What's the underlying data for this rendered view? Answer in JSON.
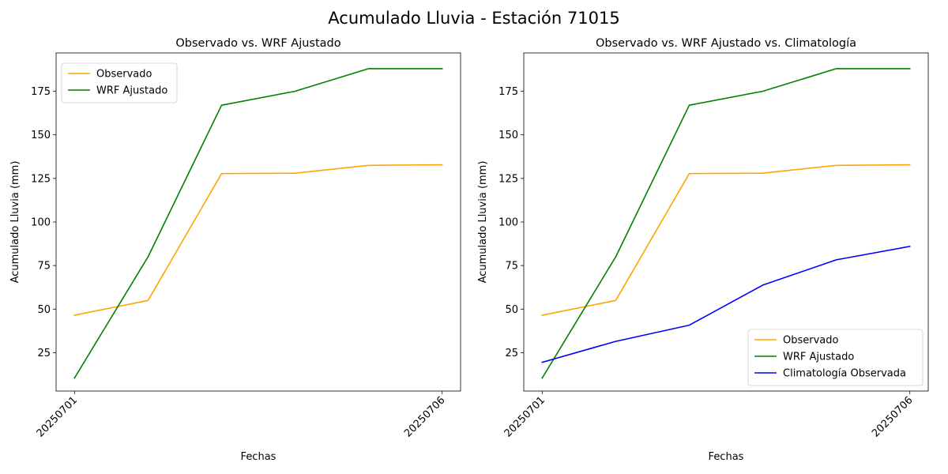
{
  "figure": {
    "suptitle": "Acumulado Lluvia - Estación 71015"
  },
  "colors": {
    "observado": "#ffa500",
    "wrf": "#008000",
    "climatologia": "#0000ff"
  },
  "chart_data": [
    {
      "type": "line",
      "title": "Observado vs. WRF Ajustado",
      "xlabel": "Fechas",
      "ylabel": "Acumulado Lluvia (mm)",
      "x": [
        0,
        1,
        2,
        3,
        4,
        5
      ],
      "xtick_values": [
        0,
        5
      ],
      "xtick_labels": [
        "20250701",
        "20250706"
      ],
      "xlim": [
        -0.25,
        5.25
      ],
      "ylim": [
        3,
        197
      ],
      "yticks": [
        25,
        50,
        75,
        100,
        125,
        150,
        175
      ],
      "legend_position": "upper left",
      "series": [
        {
          "name": "Observado",
          "color": "#ffa500",
          "values": [
            46.5,
            55.0,
            127.8,
            128.0,
            132.5,
            132.8
          ]
        },
        {
          "name": "WRF Ajustado",
          "color": "#008000",
          "values": [
            10.5,
            80.0,
            167.0,
            175.0,
            188.0,
            188.0
          ]
        }
      ]
    },
    {
      "type": "line",
      "title": "Observado vs. WRF Ajustado vs. Climatología",
      "xlabel": "Fechas",
      "ylabel": "Acumulado Lluvia (mm)",
      "x": [
        0,
        1,
        2,
        3,
        4,
        5
      ],
      "xtick_values": [
        0,
        5
      ],
      "xtick_labels": [
        "20250701",
        "20250706"
      ],
      "xlim": [
        -0.25,
        5.25
      ],
      "ylim": [
        3,
        197
      ],
      "yticks": [
        25,
        50,
        75,
        100,
        125,
        150,
        175
      ],
      "legend_position": "lower right",
      "series": [
        {
          "name": "Observado",
          "color": "#ffa500",
          "values": [
            46.5,
            55.0,
            127.8,
            128.0,
            132.5,
            132.8
          ]
        },
        {
          "name": "WRF Ajustado",
          "color": "#008000",
          "values": [
            10.5,
            80.0,
            167.0,
            175.0,
            188.0,
            188.0
          ]
        },
        {
          "name": "Climatología Observada",
          "color": "#0000ff",
          "values": [
            19.5,
            31.5,
            40.8,
            63.8,
            78.3,
            86.0
          ]
        }
      ]
    }
  ]
}
